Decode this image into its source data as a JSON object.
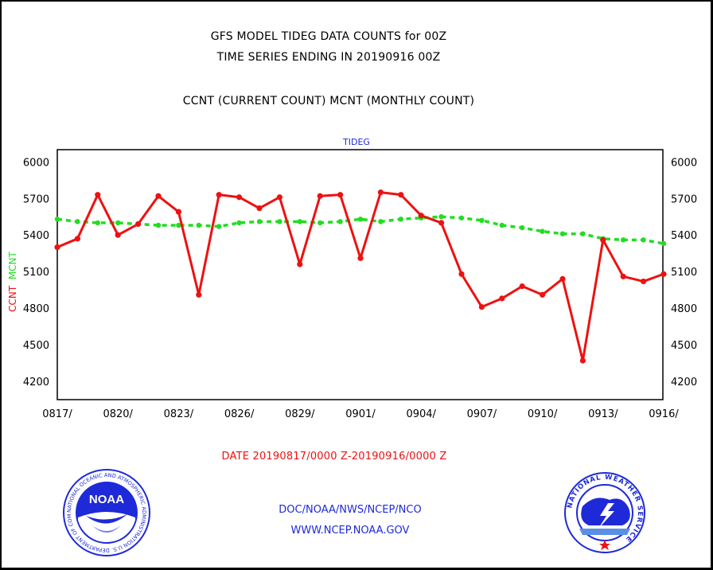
{
  "titles": {
    "line1": "GFS MODEL TIDEG DATA COUNTS for 00Z",
    "line2": "TIME SERIES ENDING IN 20190916 00Z",
    "line3": "CCNT (CURRENT COUNT) MCNT (MONTHLY COUNT)"
  },
  "panel_label": "TIDEG",
  "y_axis_label": {
    "ccnt": "CCNT",
    "mcnt": "MCNT"
  },
  "date_range": "DATE 20190817/0000 Z-20190916/0000 Z",
  "footer": {
    "line1": "DOC/NOAA/NWS/NCEP/NCO",
    "line2": "WWW.NCEP.NOAA.GOV"
  },
  "logos": {
    "left": {
      "icon": "noaa-logo",
      "text": "NOAA",
      "ring_text": "NATIONAL OCEANIC AND ATMOSPHERIC ADMINISTRATION U.S. DEPARTMENT OF COMMERCE"
    },
    "right": {
      "icon": "nws-logo",
      "ring_text": "NATIONAL WEATHER SERVICE"
    }
  },
  "colors": {
    "ccnt": "#ee1111",
    "mcnt": "#22dd22",
    "title_text": "#000000",
    "panel_label": "#1e2ad8",
    "date_range": "#ee1111",
    "footer": "#1e2ad8",
    "frame": "#000000"
  },
  "chart_data": {
    "type": "line",
    "x_ticks": [
      "0817/",
      "0820/",
      "0823/",
      "0826/",
      "0829/",
      "0901/",
      "0904/",
      "0907/",
      "0910/",
      "0913/",
      "0916/"
    ],
    "x_start": "2019-08-17",
    "x_end": "2019-09-16",
    "ylim": [
      4050,
      6100
    ],
    "y_ticks": [
      4200,
      4500,
      4800,
      5100,
      5400,
      5700,
      6000
    ],
    "grid": true,
    "series": [
      {
        "name": "CCNT",
        "values": [
          5300,
          5370,
          5730,
          5400,
          5490,
          5720,
          5590,
          4910,
          5730,
          5710,
          5620,
          5710,
          5160,
          5720,
          5730,
          5210,
          5750,
          5730,
          5560,
          5500,
          5080,
          4810,
          4880,
          4980,
          4910,
          5040,
          4370,
          5360,
          5060,
          5020,
          5080
        ]
      },
      {
        "name": "MCNT",
        "values": [
          5530,
          5510,
          5500,
          5500,
          5490,
          5480,
          5480,
          5480,
          5470,
          5500,
          5510,
          5510,
          5510,
          5500,
          5510,
          5530,
          5510,
          5530,
          5540,
          5550,
          5540,
          5520,
          5480,
          5460,
          5430,
          5410,
          5410,
          5370,
          5360,
          5360,
          5330
        ]
      }
    ]
  }
}
